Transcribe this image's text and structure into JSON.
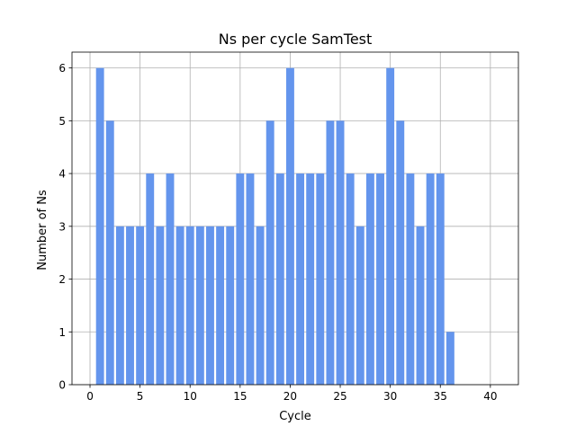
{
  "chart_data": {
    "type": "bar",
    "title": "Ns per cycle SamTest",
    "xlabel": "Cycle",
    "ylabel": "Number of Ns",
    "x": [
      1,
      2,
      3,
      4,
      5,
      6,
      7,
      8,
      9,
      10,
      11,
      12,
      13,
      14,
      15,
      16,
      17,
      18,
      19,
      20,
      21,
      22,
      23,
      24,
      25,
      26,
      27,
      28,
      29,
      30,
      31,
      32,
      33,
      34,
      35,
      36
    ],
    "values": [
      6,
      5,
      3,
      3,
      3,
      4,
      3,
      4,
      3,
      3,
      3,
      3,
      3,
      3,
      4,
      4,
      3,
      5,
      4,
      6,
      4,
      4,
      4,
      5,
      5,
      4,
      3,
      4,
      4,
      6,
      5,
      4,
      3,
      4,
      4,
      1
    ],
    "xlim": [
      -1.8,
      42.8
    ],
    "ylim": [
      0,
      6.3
    ],
    "xticks": [
      0,
      5,
      10,
      15,
      20,
      25,
      30,
      35,
      40
    ],
    "yticks": [
      0,
      1,
      2,
      3,
      4,
      5,
      6
    ],
    "bar_color": "#6495ed",
    "grid": true,
    "legend": "none"
  }
}
